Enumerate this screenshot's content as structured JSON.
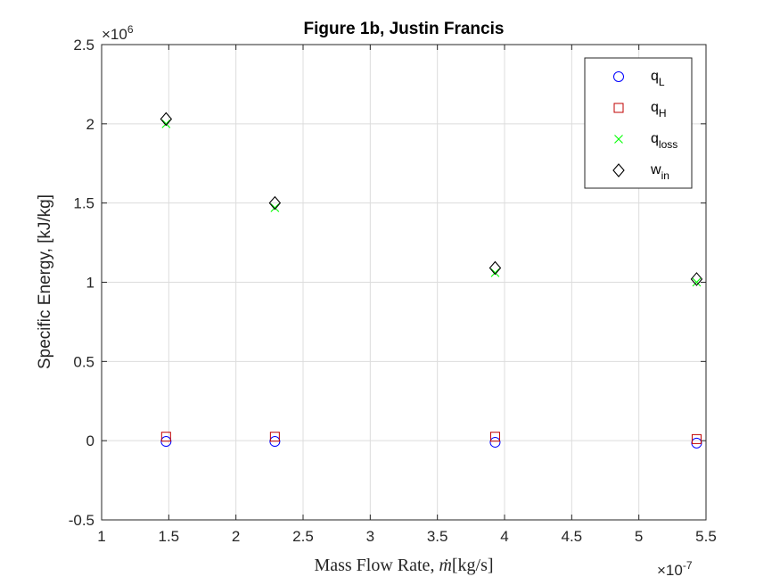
{
  "chart_data": {
    "type": "scatter",
    "title": "Figure 1b, Justin Francis",
    "xlabel_main": "Mass Flow Rate, ",
    "xlabel_var": "ṁ",
    "xlabel_unit": "[kg/s]",
    "ylabel": "Specific Energy, [kJ/kg]",
    "x_multiplier": {
      "base": "×10",
      "exp": "-7"
    },
    "y_multiplier": {
      "base": "×10",
      "exp": "6"
    },
    "xlim": [
      1,
      5.5
    ],
    "ylim": [
      -0.5,
      2.5
    ],
    "x_ticks": [
      1,
      1.5,
      2,
      2.5,
      3,
      3.5,
      4,
      4.5,
      5,
      5.5
    ],
    "x_tick_labels": [
      "1",
      "1.5",
      "2",
      "2.5",
      "3",
      "3.5",
      "4",
      "4.5",
      "5",
      "5.5"
    ],
    "y_ticks": [
      -0.5,
      0,
      0.5,
      1,
      1.5,
      2,
      2.5
    ],
    "y_tick_labels": [
      "-0.5",
      "0",
      "0.5",
      "1",
      "1.5",
      "2",
      "2.5"
    ],
    "grid": true,
    "legend_position": "top-right",
    "x": [
      1.48,
      2.29,
      3.93,
      5.43
    ],
    "series": [
      {
        "name": "q",
        "sub": "L",
        "marker": "circle",
        "color": "#0000ff",
        "values": [
          -0.005,
          -0.005,
          -0.01,
          -0.015
        ]
      },
      {
        "name": "q",
        "sub": "H",
        "marker": "square",
        "color": "#c00000",
        "values": [
          0.025,
          0.025,
          0.025,
          0.01
        ]
      },
      {
        "name": "q",
        "sub": "loss",
        "marker": "x",
        "color": "#00ff00",
        "values": [
          2.0,
          1.47,
          1.06,
          1.0
        ]
      },
      {
        "name": "w",
        "sub": "in",
        "marker": "diamond",
        "color": "#000000",
        "values": [
          2.03,
          1.5,
          1.09,
          1.02
        ]
      }
    ]
  }
}
